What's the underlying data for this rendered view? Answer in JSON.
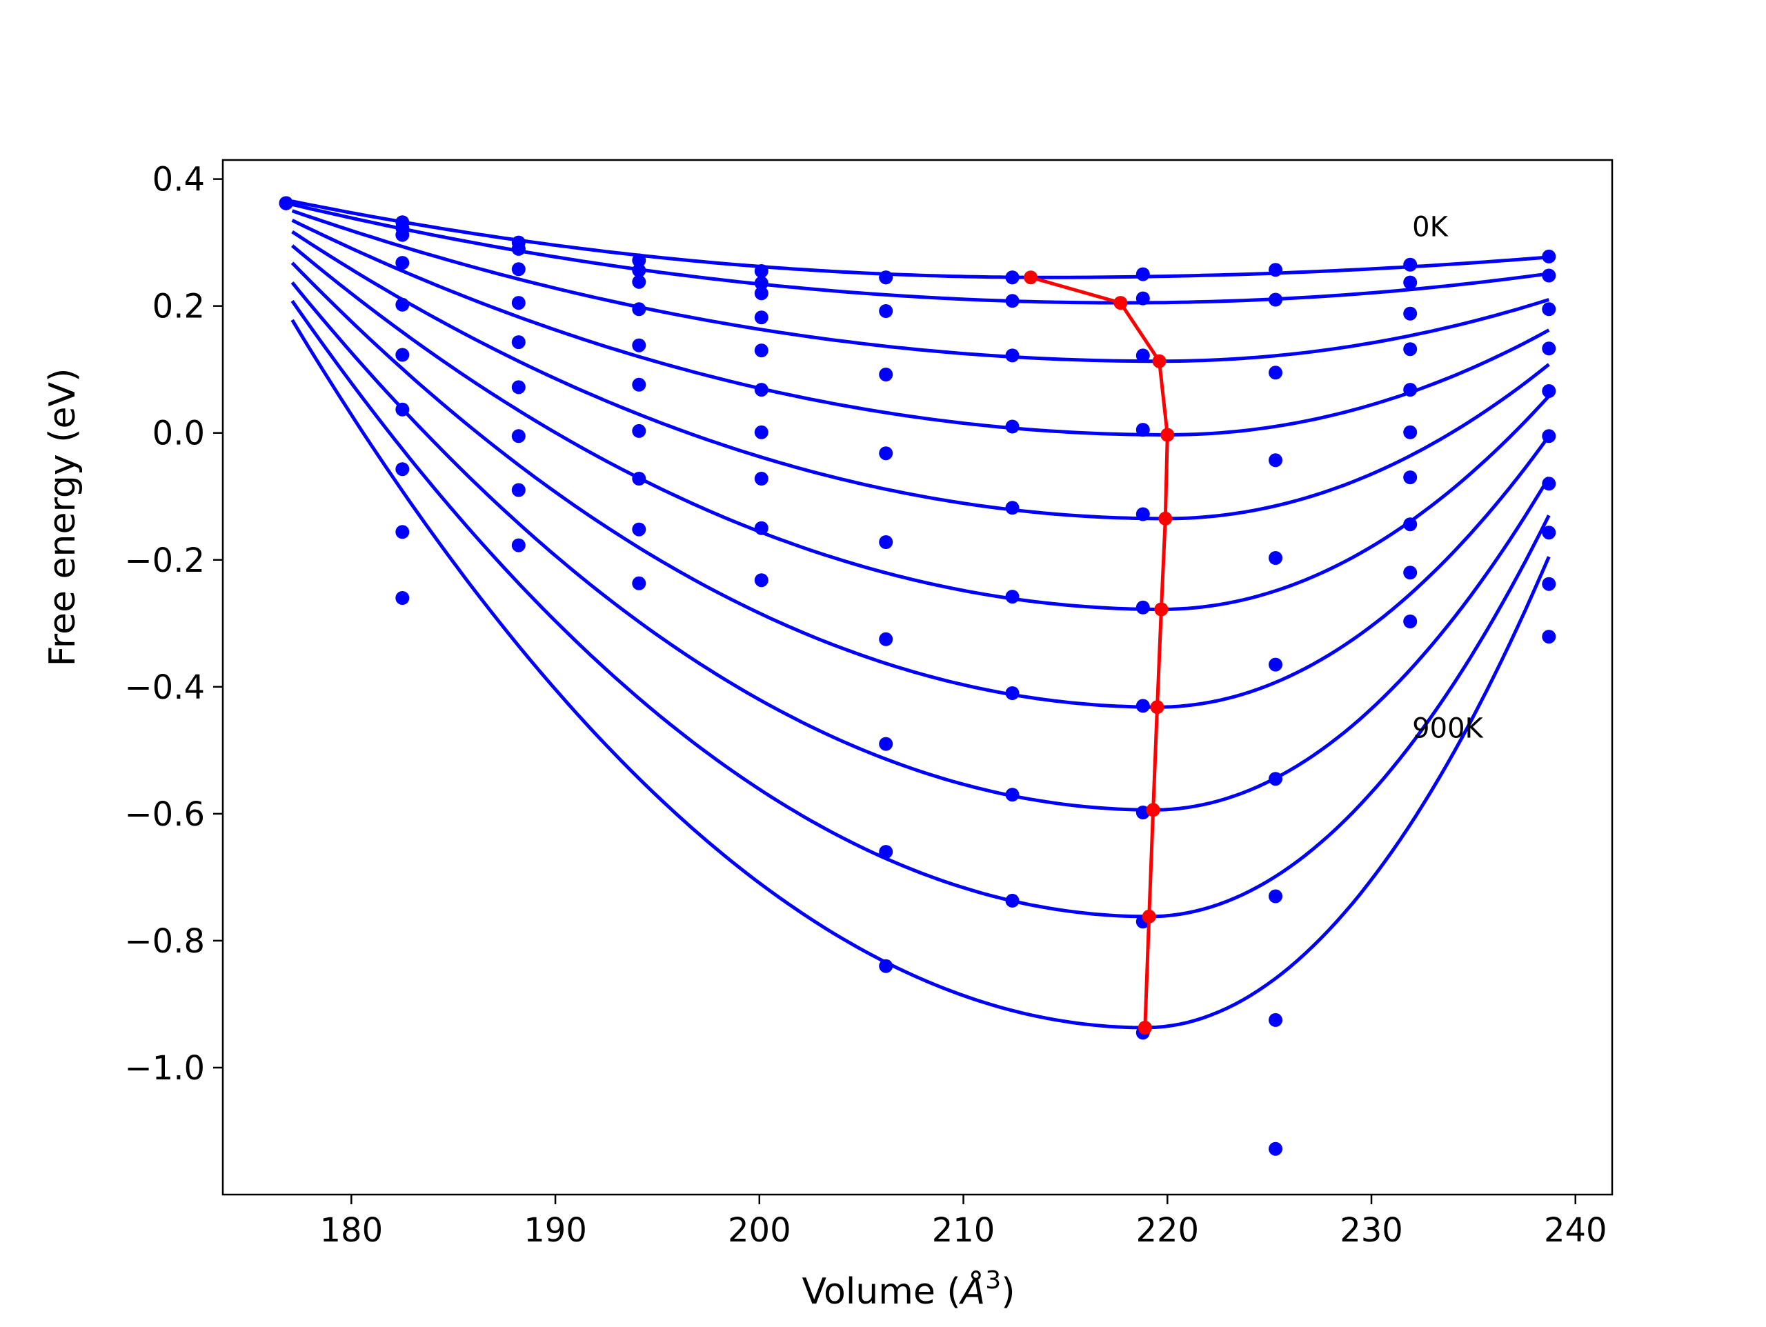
{
  "chart_data": {
    "type": "scatter",
    "xlabel_main": "Volume (",
    "xlabel_unit": "Å",
    "xlabel_sup": "3",
    "xlabel_close": ")",
    "ylabel": "Free energy (eV)",
    "xlim": [
      173.7,
      241.8
    ],
    "ylim": [
      -1.2,
      0.43
    ],
    "x_ticks": [
      180,
      190,
      200,
      210,
      220,
      230,
      240
    ],
    "x_tick_labels": [
      "180",
      "190",
      "200",
      "210",
      "220",
      "230",
      "240"
    ],
    "y_ticks": [
      0.4,
      0.2,
      0.0,
      -0.2,
      -0.4,
      -0.6,
      -0.8,
      -1.0
    ],
    "y_tick_labels": [
      "0.4",
      "0.2",
      "0.0",
      "−0.2",
      "−0.4",
      "−0.6",
      "−0.8",
      "−1.0"
    ],
    "grid": false,
    "annotations": [
      {
        "text": "0K",
        "x": 232.0,
        "y": 0.325
      },
      {
        "text": "900K",
        "x": 232.0,
        "y": -0.465
      }
    ],
    "colors": {
      "fit": "#0000ff",
      "points": "#0000ff",
      "minima": "#ff0000"
    },
    "x_points": [
      176.8,
      182.5,
      188.2,
      194.1,
      200.1,
      206.2,
      212.4,
      218.8,
      225.3,
      231.9,
      238.7
    ],
    "series": [
      {
        "values": [
          0.362,
          0.332,
          0.3,
          0.272,
          0.255,
          0.245,
          0.245,
          0.25,
          0.257,
          0.265,
          0.278
        ]
      },
      {
        "values": [
          0.362,
          0.323,
          0.29,
          0.256,
          0.236,
          0.245,
          0.245,
          0.212,
          0.21,
          0.237,
          0.248
        ]
      },
      {
        "values": [
          0.362,
          0.312,
          0.29,
          0.238,
          0.22,
          0.192,
          0.208,
          0.122,
          0.095,
          0.188,
          0.195
        ]
      },
      {
        "values": [
          0.362,
          0.268,
          0.258,
          0.195,
          0.182,
          0.092,
          0.122,
          0.005,
          -0.043,
          0.132,
          0.133
        ]
      },
      {
        "values": [
          0.362,
          0.202,
          0.205,
          0.138,
          0.13,
          -0.032,
          0.01,
          -0.128,
          -0.197,
          0.068,
          0.066
        ]
      },
      {
        "values": [
          0.362,
          0.123,
          0.143,
          0.076,
          0.068,
          -0.172,
          -0.118,
          -0.275,
          -0.365,
          0.001,
          -0.005
        ]
      },
      {
        "values": [
          0.362,
          0.037,
          0.072,
          0.003,
          0.001,
          -0.325,
          -0.258,
          -0.43,
          -0.545,
          -0.07,
          -0.08
        ]
      },
      {
        "values": [
          0.362,
          -0.057,
          -0.005,
          -0.072,
          -0.072,
          -0.49,
          -0.41,
          -0.598,
          -0.73,
          -0.144,
          -0.157
        ]
      },
      {
        "values": [
          0.362,
          -0.156,
          -0.09,
          -0.152,
          -0.15,
          -0.66,
          -0.57,
          -0.77,
          -0.925,
          -0.22,
          -0.238
        ]
      },
      {
        "values": [
          0.362,
          -0.26,
          -0.177,
          -0.237,
          -0.232,
          -0.84,
          -0.737,
          -0.945,
          -1.128,
          -0.297,
          -0.321
        ]
      }
    ],
    "fits": [
      {
        "y0": 0.365,
        "vmin": 214.0,
        "fmin": 0.245,
        "v_end": 238.7,
        "f_end": 0.277
      },
      {
        "y0": 0.36,
        "vmin": 217.8,
        "fmin": 0.205,
        "v_end": 238.7,
        "f_end": 0.251
      },
      {
        "y0": 0.35,
        "vmin": 219.6,
        "fmin": 0.113,
        "v_end": 238.7,
        "f_end": 0.21
      },
      {
        "y0": 0.335,
        "vmin": 220.0,
        "fmin": -0.003,
        "v_end": 238.7,
        "f_end": 0.162
      },
      {
        "y0": 0.317,
        "vmin": 219.9,
        "fmin": -0.135,
        "v_end": 238.7,
        "f_end": 0.108
      },
      {
        "y0": 0.295,
        "vmin": 219.7,
        "fmin": -0.278,
        "v_end": 238.7,
        "f_end": 0.058
      },
      {
        "y0": 0.268,
        "vmin": 219.5,
        "fmin": -0.432,
        "v_end": 238.7,
        "f_end": -0.005
      },
      {
        "y0": 0.237,
        "vmin": 219.3,
        "fmin": -0.594,
        "v_end": 238.7,
        "f_end": -0.07
      },
      {
        "y0": 0.208,
        "vmin": 219.1,
        "fmin": -0.762,
        "v_end": 238.7,
        "f_end": -0.13
      },
      {
        "y0": 0.178,
        "vmin": 218.9,
        "fmin": -0.937,
        "v_end": 238.7,
        "f_end": -0.195
      }
    ],
    "fit_x_start": 177.1,
    "minima": [
      {
        "x": 213.3,
        "y": 0.245
      },
      {
        "x": 217.7,
        "y": 0.205
      },
      {
        "x": 219.6,
        "y": 0.113
      },
      {
        "x": 220.0,
        "y": -0.003
      },
      {
        "x": 219.9,
        "y": -0.135
      },
      {
        "x": 219.7,
        "y": -0.278
      },
      {
        "x": 219.5,
        "y": -0.432
      },
      {
        "x": 219.3,
        "y": -0.594
      },
      {
        "x": 219.1,
        "y": -0.762
      },
      {
        "x": 218.9,
        "y": -0.937
      }
    ]
  }
}
